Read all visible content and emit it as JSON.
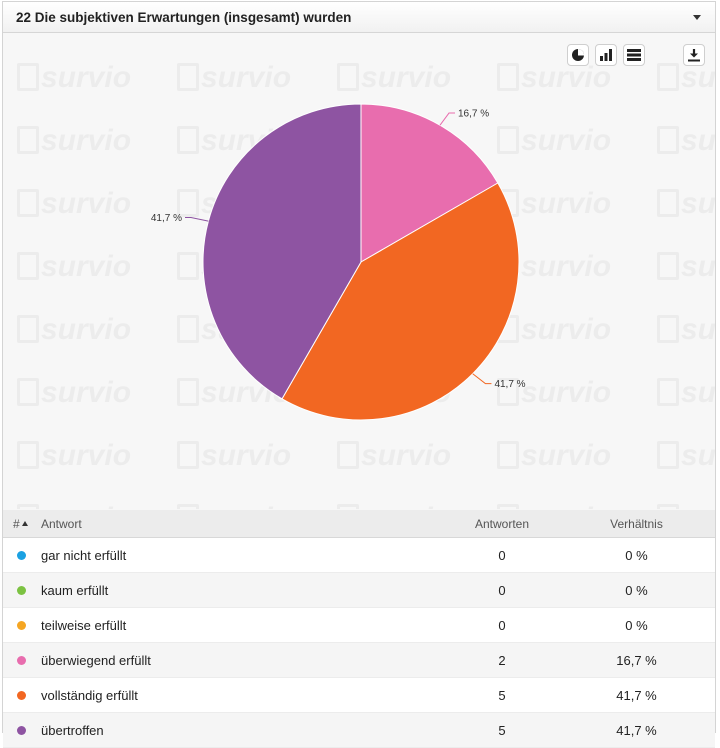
{
  "header": {
    "title": "22 Die subjektiven Erwartungen (insgesamt) wurden"
  },
  "watermark_text": "survio",
  "toolbar": [
    {
      "name": "pie-chart-icon"
    },
    {
      "name": "bar-chart-icon"
    },
    {
      "name": "table-view-icon"
    },
    {
      "name": "download-icon"
    }
  ],
  "table": {
    "columns": {
      "num": "#",
      "answer": "Antwort",
      "count": "Antworten",
      "ratio": "Verhältnis"
    },
    "rows": [
      {
        "answer": "gar nicht erfüllt",
        "count": "0",
        "ratio": "0 %",
        "color": "#1ba1e2"
      },
      {
        "answer": "kaum erfüllt",
        "count": "0",
        "ratio": "0 %",
        "color": "#7cc242"
      },
      {
        "answer": "teilweise erfüllt",
        "count": "0",
        "ratio": "0 %",
        "color": "#f5a623"
      },
      {
        "answer": "überwiegend erfüllt",
        "count": "2",
        "ratio": "16,7 %",
        "color": "#e86dae"
      },
      {
        "answer": "vollständig erfüllt",
        "count": "5",
        "ratio": "41,7 %",
        "color": "#f26722"
      },
      {
        "answer": "übertroffen",
        "count": "5",
        "ratio": "41,7 %",
        "color": "#8e54a2"
      }
    ]
  },
  "chart_data": {
    "type": "pie",
    "title": "22 Die subjektiven Erwartungen (insgesamt) wurden",
    "categories": [
      "gar nicht erfüllt",
      "kaum erfüllt",
      "teilweise erfüllt",
      "überwiegend erfüllt",
      "vollständig erfüllt",
      "übertroffen"
    ],
    "values": [
      0,
      0,
      0,
      2,
      5,
      5
    ],
    "labels": [
      "0 %",
      "0 %",
      "0 %",
      "16,7 %",
      "41,7 %",
      "41,7 %"
    ],
    "colors": [
      "#1ba1e2",
      "#7cc242",
      "#f5a623",
      "#e86dae",
      "#f26722",
      "#8e54a2"
    ],
    "start_angle_deg": 0,
    "direction": "clockwise",
    "legend": "none"
  }
}
